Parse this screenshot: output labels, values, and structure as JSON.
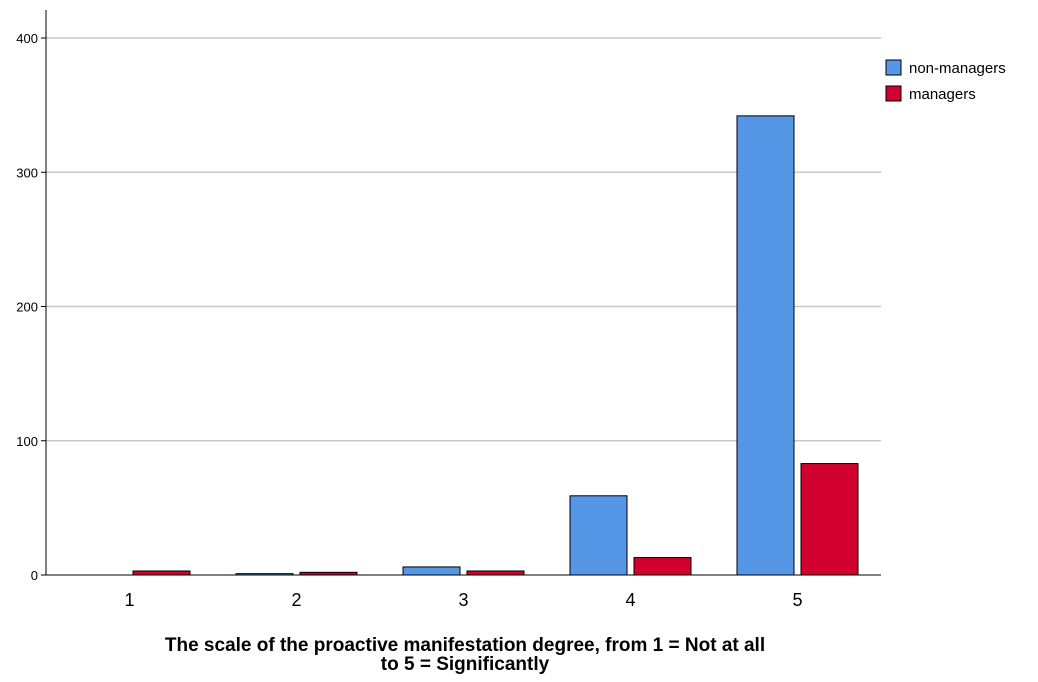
{
  "chart_data": {
    "type": "bar",
    "title": "",
    "xlabel": "The scale of the proactive manifestation degree, from 1 = Not at all to 5 = Significantly",
    "xlabel_lines": [
      "The scale of the proactive manifestation degree, from 1 = Not at all",
      "to 5 = Significantly"
    ],
    "ylabel": "",
    "categories": [
      "1",
      "2",
      "3",
      "4",
      "5"
    ],
    "ylim": [
      0,
      420
    ],
    "yticks": [
      0,
      100,
      200,
      300,
      400
    ],
    "grid": true,
    "legend_position": "top-right",
    "series": [
      {
        "name": "non-managers",
        "color": "#5596e6",
        "values": [
          0,
          1,
          6,
          59,
          342
        ]
      },
      {
        "name": "managers",
        "color": "#d1002f",
        "values": [
          3,
          2,
          3,
          13,
          83
        ]
      }
    ]
  }
}
